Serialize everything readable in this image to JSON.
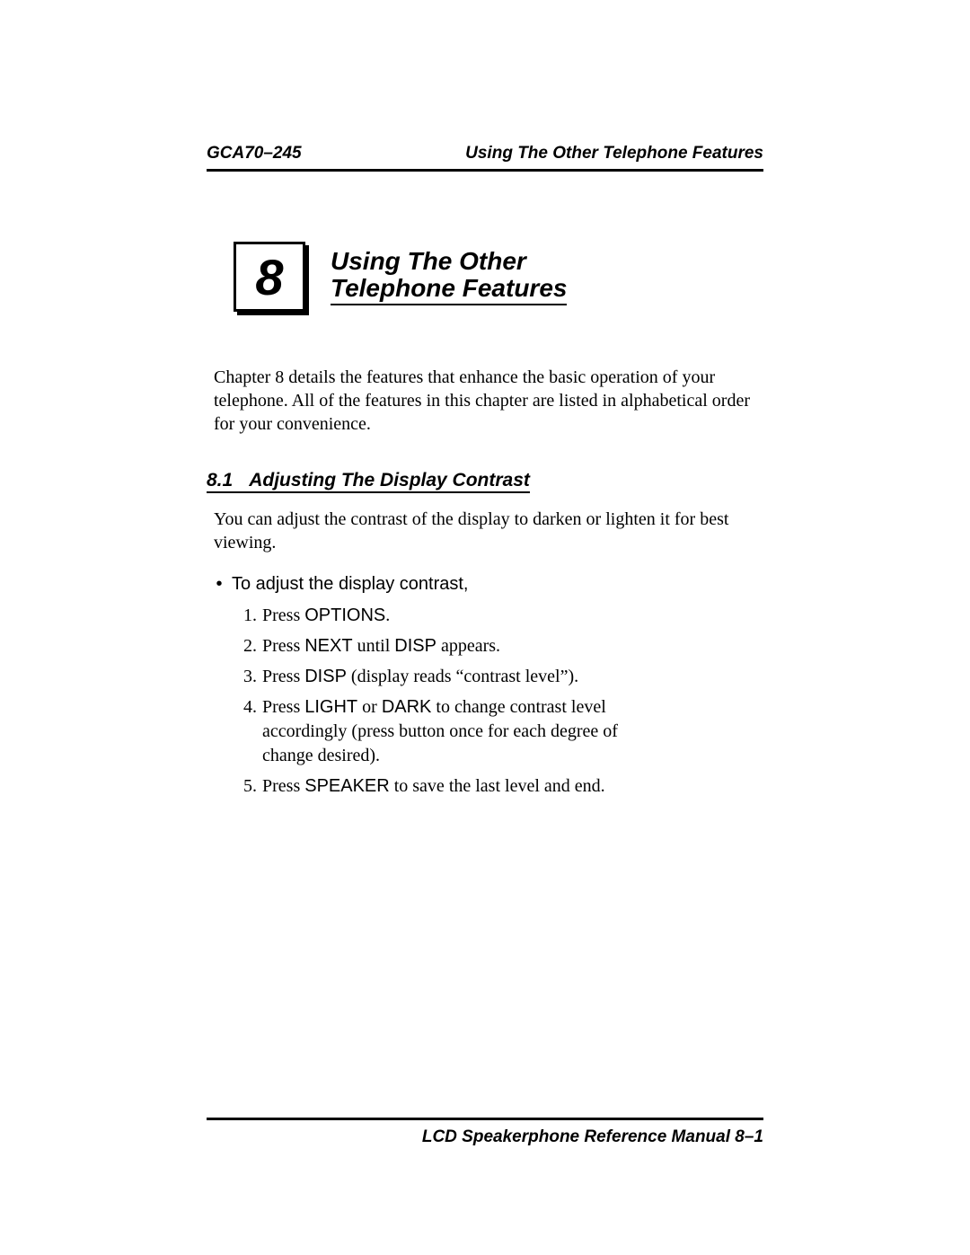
{
  "colors": {
    "text": "#000000",
    "background": "#ffffff",
    "rule": "#000000"
  },
  "typography": {
    "body_font": "Times New Roman",
    "ui_font": "Arial",
    "body_size_pt": 15,
    "heading_size_pt": 16,
    "chapter_title_size_pt": 21,
    "chapter_number_size_pt": 42
  },
  "header": {
    "left": "GCA70–245",
    "right": "Using The Other Telephone Features"
  },
  "chapter": {
    "number": "8",
    "title_line1": "Using The Other",
    "title_line2": "Telephone Features"
  },
  "intro": "Chapter 8 details the features that enhance the basic operation of your telephone. All of the features in this chapter are listed in alphabetical order for your convenience.",
  "section": {
    "number": "8.1",
    "title": "Adjusting The Display Contrast",
    "para": "You can adjust the contrast of the display to darken or lighten it for best viewing.",
    "bullet": "To adjust the display contrast,",
    "steps": [
      {
        "n": "1.",
        "pre": "Press ",
        "key": "OPTIONS",
        "post": "."
      },
      {
        "n": "2.",
        "pre": "Press ",
        "key": "NEXT",
        "post": " until ",
        "key2": "DISP",
        "post2": " appears."
      },
      {
        "n": "3.",
        "pre": "Press ",
        "key": "DISP",
        "post": " (display reads “contrast level”)."
      },
      {
        "n": "4.",
        "pre": "Press ",
        "key": "LIGHT",
        "post": "  or ",
        "key2": "DARK",
        "post2": " to change contrast level accordingly (press button once for each degree of change desired)."
      },
      {
        "n": "5.",
        "pre": "Press ",
        "key": "SPEAKER",
        "post": " to save the last level and end."
      }
    ]
  },
  "footer": {
    "text": "LCD Speakerphone Reference Manual  8–1"
  }
}
